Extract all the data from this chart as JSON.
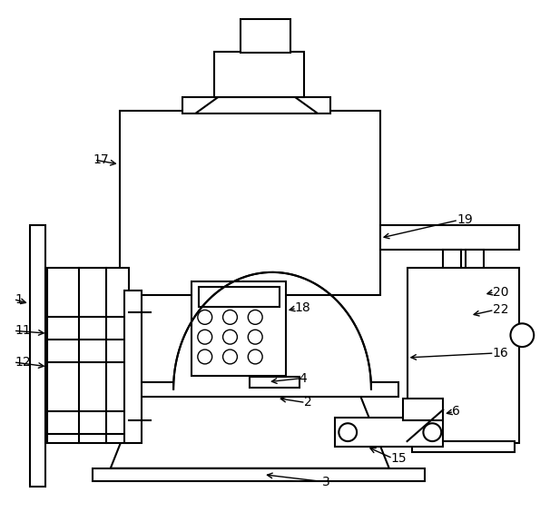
{
  "bg_color": "#ffffff",
  "lc": "#000000",
  "lw": 1.5,
  "figsize": [
    6.06,
    5.75
  ],
  "dpi": 100
}
